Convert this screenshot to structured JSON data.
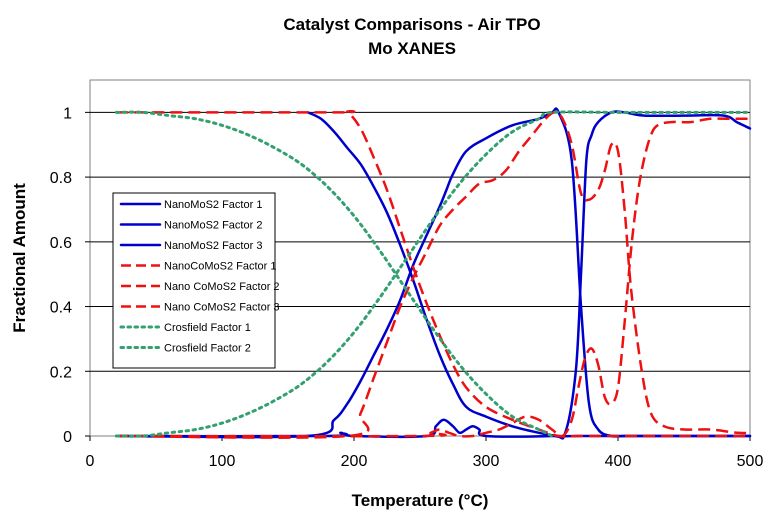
{
  "chart_data": {
    "type": "line",
    "title": "Catalyst Comparisons - Air TPO",
    "subtitle": "Mo XANES",
    "xlabel": "Temperature (°C)",
    "ylabel": "Fractional Amount",
    "xlim": [
      0,
      500
    ],
    "ylim": [
      0,
      1.1
    ],
    "xticks": [
      "0",
      "100",
      "200",
      "300",
      "400",
      "500"
    ],
    "yticks": [
      "0",
      "0.2",
      "0.4",
      "0.6",
      "0.8",
      "1"
    ],
    "grid": "horizontal",
    "legend_position": "left",
    "series": [
      {
        "name": "NanoMoS2 Factor 1",
        "color": "#0000cc",
        "dash": "solid",
        "x": [
          165,
          175,
          185,
          195,
          205,
          215,
          225,
          235,
          245,
          255,
          265,
          275,
          285,
          300,
          320,
          340,
          355,
          370,
          400,
          450,
          500
        ],
        "y": [
          1.0,
          0.98,
          0.94,
          0.89,
          0.84,
          0.77,
          0.69,
          0.59,
          0.48,
          0.36,
          0.25,
          0.16,
          0.09,
          0.06,
          0.03,
          0.01,
          0.0,
          0.0,
          0.0,
          0.0,
          0.0
        ]
      },
      {
        "name": "NanoMoS2 Factor 2",
        "color": "#0000cc",
        "dash": "solid",
        "x": [
          20,
          165,
          185,
          195,
          205,
          215,
          225,
          235,
          245,
          255,
          265,
          270,
          275,
          285,
          300,
          320,
          340,
          350,
          355,
          365,
          372,
          378,
          385,
          395,
          405,
          420,
          450,
          480,
          500
        ],
        "y": [
          0.0,
          0.0,
          0.05,
          0.1,
          0.17,
          0.25,
          0.33,
          0.42,
          0.53,
          0.62,
          0.71,
          0.76,
          0.81,
          0.88,
          0.92,
          0.96,
          0.98,
          1.0,
          1.0,
          0.85,
          0.4,
          0.1,
          0.02,
          0.0,
          0.0,
          0.0,
          0.0,
          0.0,
          0.0
        ]
      },
      {
        "name": "NanoMoS2 Factor 3",
        "color": "#0000cc",
        "dash": "solid",
        "x": [
          20,
          180,
          190,
          200,
          255,
          262,
          268,
          275,
          280,
          285,
          290,
          295,
          300,
          350,
          360,
          368,
          372,
          376,
          380,
          385,
          395,
          405,
          420,
          450,
          480,
          490,
          500
        ],
        "y": [
          0.0,
          0.0,
          0.01,
          0.0,
          0.0,
          0.03,
          0.05,
          0.03,
          0.01,
          0.02,
          0.03,
          0.02,
          0.0,
          0.0,
          0.01,
          0.2,
          0.5,
          0.85,
          0.93,
          0.97,
          1.0,
          1.0,
          0.99,
          0.99,
          0.99,
          0.97,
          0.95
        ]
      },
      {
        "name": "NanoCoMoS2 Factor 1",
        "color": "#ee1111",
        "dash": "long",
        "x": [
          20,
          185,
          195,
          205,
          215,
          225,
          235,
          245,
          255,
          265,
          275,
          285,
          300,
          320,
          340,
          355,
          370,
          400,
          450,
          500
        ],
        "y": [
          1.0,
          1.0,
          1.0,
          0.95,
          0.86,
          0.76,
          0.64,
          0.52,
          0.41,
          0.31,
          0.22,
          0.15,
          0.09,
          0.05,
          0.02,
          0.0,
          0.0,
          0.0,
          0.0,
          0.0
        ]
      },
      {
        "name": "Nano CoMoS2 Factor 2",
        "color": "#ee1111",
        "dash": "long",
        "x": [
          20,
          195,
          205,
          215,
          225,
          235,
          245,
          255,
          265,
          275,
          285,
          295,
          305,
          315,
          325,
          335,
          345,
          352,
          358,
          365,
          372,
          378,
          385,
          390,
          395,
          400,
          405,
          410,
          418,
          425,
          435,
          450,
          470,
          490,
          500
        ],
        "y": [
          0.0,
          0.0,
          0.07,
          0.18,
          0.29,
          0.4,
          0.49,
          0.57,
          0.65,
          0.7,
          0.74,
          0.78,
          0.79,
          0.82,
          0.88,
          0.93,
          0.98,
          1.0,
          0.98,
          0.9,
          0.75,
          0.73,
          0.76,
          0.82,
          0.9,
          0.88,
          0.7,
          0.45,
          0.2,
          0.07,
          0.03,
          0.02,
          0.02,
          0.01,
          0.01
        ]
      },
      {
        "name": "Nano CoMoS2 Factor 3",
        "color": "#ee1111",
        "dash": "long",
        "x": [
          20,
          250,
          258,
          265,
          272,
          280,
          290,
          300,
          310,
          320,
          330,
          340,
          350,
          358,
          365,
          370,
          375,
          380,
          385,
          390,
          395,
          400,
          405,
          410,
          415,
          420,
          425,
          430,
          440,
          455,
          470,
          490,
          500
        ],
        "y": [
          0.0,
          0.0,
          0.01,
          0.02,
          0.01,
          0.0,
          0.0,
          0.01,
          0.02,
          0.04,
          0.06,
          0.05,
          0.02,
          0.0,
          0.05,
          0.15,
          0.24,
          0.27,
          0.22,
          0.12,
          0.1,
          0.15,
          0.35,
          0.58,
          0.75,
          0.86,
          0.93,
          0.96,
          0.97,
          0.97,
          0.98,
          0.98,
          0.98
        ]
      },
      {
        "name": "Crosfield Factor 1",
        "color": "#33a070",
        "dash": "dot",
        "x": [
          20,
          40,
          60,
          80,
          100,
          120,
          140,
          160,
          180,
          200,
          220,
          240,
          260,
          280,
          300,
          320,
          340,
          350
        ],
        "y": [
          1.0,
          1.0,
          0.99,
          0.98,
          0.96,
          0.93,
          0.89,
          0.84,
          0.77,
          0.68,
          0.57,
          0.45,
          0.33,
          0.22,
          0.13,
          0.06,
          0.02,
          0.0
        ]
      },
      {
        "name": "Crosfield Factor 2",
        "color": "#33a070",
        "dash": "dot",
        "x": [
          20,
          40,
          60,
          80,
          100,
          120,
          140,
          160,
          180,
          200,
          220,
          240,
          260,
          280,
          300,
          320,
          340,
          350,
          400,
          450,
          500
        ],
        "y": [
          0.0,
          0.0,
          0.01,
          0.02,
          0.04,
          0.07,
          0.11,
          0.16,
          0.23,
          0.32,
          0.43,
          0.55,
          0.67,
          0.78,
          0.87,
          0.94,
          0.98,
          1.0,
          1.0,
          1.0,
          1.0
        ]
      }
    ]
  }
}
